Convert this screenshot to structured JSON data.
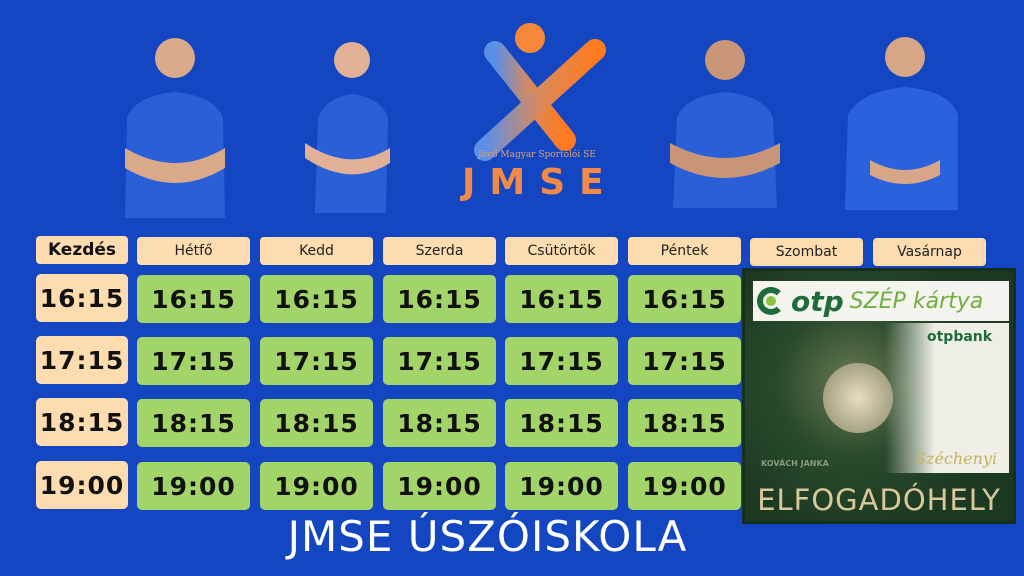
{
  "logo": {
    "subtitle": "Jövő Magyar Sportolói SE",
    "name": "JMSE"
  },
  "schedule": {
    "start_header": "Kezdés",
    "days": [
      "Hétfő",
      "Kedd",
      "Szerda",
      "Csütörtök",
      "Péntek",
      "Szombat",
      "Vasárnap"
    ],
    "start_times": [
      "16:15",
      "17:15",
      "18:15",
      "19:00"
    ],
    "rows": [
      [
        "16:15",
        "16:15",
        "16:15",
        "16:15",
        "16:15"
      ],
      [
        "17:15",
        "17:15",
        "17:15",
        "17:15",
        "17:15"
      ],
      [
        "18:15",
        "18:15",
        "18:15",
        "18:15",
        "18:15"
      ],
      [
        "19:00",
        "19:00",
        "19:00",
        "19:00",
        "19:00"
      ]
    ]
  },
  "otp_card": {
    "brand": "otp",
    "product": "SZÉP kártya",
    "bank": "otpbank",
    "holder": "KOVÁCH JANKA",
    "signature": "Széchenyi",
    "footer": "ELFOGADÓHELY"
  },
  "footer_title": "JMSE ÚSZÓISKOLA",
  "colors": {
    "background": "#1446c2",
    "header_cell": "#fddcb0",
    "time_cell": "#a3d46a",
    "logo_orange": "#f5873a"
  }
}
